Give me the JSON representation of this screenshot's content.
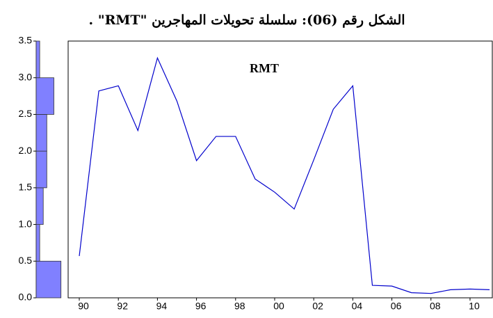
{
  "chart_data": {
    "type": "line",
    "title": "الشكل رقم (06): سلسلة تحويلات المهاجرين \"RMT\" .",
    "x": [
      1990,
      1991,
      1992,
      1993,
      1994,
      1995,
      1996,
      1997,
      1998,
      1999,
      2000,
      2001,
      2002,
      2003,
      2004,
      2005,
      2006,
      2007,
      2008,
      2009,
      2010,
      2011
    ],
    "series": [
      {
        "name": "RMT",
        "color": "#0000cc",
        "values": [
          0.57,
          2.82,
          2.89,
          2.28,
          3.27,
          2.68,
          1.87,
          2.2,
          2.2,
          1.62,
          1.44,
          1.21,
          1.88,
          2.57,
          2.89,
          0.17,
          0.16,
          0.07,
          0.06,
          0.11,
          0.12,
          0.11
        ]
      }
    ],
    "xlim": [
      1989.43,
      2011.14
    ],
    "xticks": [
      {
        "value": 1990,
        "label": "90"
      },
      {
        "value": 1992,
        "label": "92"
      },
      {
        "value": 1994,
        "label": "94"
      },
      {
        "value": 1996,
        "label": "96"
      },
      {
        "value": 1998,
        "label": "98"
      },
      {
        "value": 2000,
        "label": "00"
      },
      {
        "value": 2002,
        "label": "02"
      },
      {
        "value": 2004,
        "label": "04"
      },
      {
        "value": 2006,
        "label": "06"
      },
      {
        "value": 2008,
        "label": "08"
      },
      {
        "value": 2010,
        "label": "10"
      }
    ],
    "ylim": [
      0,
      3.5
    ],
    "yticks": [
      {
        "value": 0,
        "label": "0.0"
      },
      0.5,
      {
        "value": 1,
        "label": "1.0"
      },
      1.5,
      {
        "value": 2,
        "label": "2.0"
      },
      2.5,
      {
        "value": 3,
        "label": "3.0"
      },
      3.5
    ],
    "histogram": {
      "bins": [
        0,
        0.5,
        1,
        1.5,
        2,
        2.5,
        3,
        3.5
      ],
      "counts": [
        7,
        1,
        2,
        3,
        3,
        5,
        1
      ],
      "color": "#8080ff"
    }
  }
}
